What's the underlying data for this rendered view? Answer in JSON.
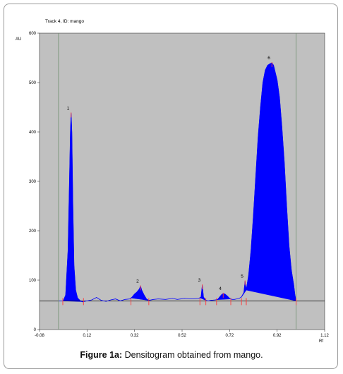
{
  "chart_data": {
    "type": "area",
    "title": "Track 4, ID: mango",
    "ylabel": "AU",
    "xlabel": "Rf",
    "xlim": [
      -0.08,
      1.12
    ],
    "ylim": [
      0,
      600
    ],
    "x_ticks": [
      -0.08,
      0.12,
      0.32,
      0.52,
      0.72,
      0.92,
      1.12
    ],
    "x_tick_labels": [
      "-0.08",
      "0.12",
      "0.32",
      "0.52",
      "0.72",
      "0.92",
      "1.12"
    ],
    "y_ticks": [
      0,
      100,
      200,
      300,
      400,
      500,
      600
    ],
    "y_tick_labels": [
      "0",
      "100",
      "200",
      "300",
      "400",
      "500",
      "600"
    ],
    "baseline_au": 58,
    "start_marker_rf": 0.0,
    "end_marker_rf": 1.0,
    "colors": {
      "plot_bg": "#c0c0c0",
      "fill": "#0000ff",
      "line": "#0000ff",
      "marker": "#ff3b3b",
      "baseline": "#000000",
      "guide": "#6f8f6f"
    },
    "peaks": [
      {
        "label": "1",
        "rf": 0.053,
        "height_au": 438
      },
      {
        "label": "2",
        "rf": 0.345,
        "height_au": 88
      },
      {
        "label": "3",
        "rf": 0.605,
        "height_au": 90
      },
      {
        "label": "4",
        "rf": 0.693,
        "height_au": 73
      },
      {
        "label": "5",
        "rf": 0.785,
        "height_au": 98
      },
      {
        "label": "6",
        "rf": 0.898,
        "height_au": 540
      }
    ],
    "curve": [
      [
        0.0,
        58
      ],
      [
        0.02,
        58
      ],
      [
        0.03,
        70
      ],
      [
        0.04,
        160
      ],
      [
        0.046,
        300
      ],
      [
        0.05,
        400
      ],
      [
        0.053,
        438
      ],
      [
        0.056,
        400
      ],
      [
        0.06,
        260
      ],
      [
        0.065,
        130
      ],
      [
        0.072,
        80
      ],
      [
        0.08,
        64
      ],
      [
        0.09,
        59
      ],
      [
        0.1,
        56
      ],
      [
        0.12,
        58
      ],
      [
        0.14,
        60
      ],
      [
        0.16,
        65
      ],
      [
        0.18,
        59
      ],
      [
        0.2,
        57
      ],
      [
        0.22,
        60
      ],
      [
        0.24,
        62
      ],
      [
        0.26,
        58
      ],
      [
        0.28,
        61
      ],
      [
        0.3,
        62
      ],
      [
        0.31,
        66
      ],
      [
        0.32,
        72
      ],
      [
        0.33,
        76
      ],
      [
        0.34,
        82
      ],
      [
        0.345,
        88
      ],
      [
        0.35,
        80
      ],
      [
        0.36,
        70
      ],
      [
        0.37,
        62
      ],
      [
        0.38,
        59
      ],
      [
        0.4,
        61
      ],
      [
        0.42,
        62
      ],
      [
        0.45,
        61
      ],
      [
        0.48,
        63
      ],
      [
        0.5,
        61
      ],
      [
        0.53,
        63
      ],
      [
        0.56,
        62
      ],
      [
        0.59,
        63
      ],
      [
        0.6,
        66
      ],
      [
        0.605,
        90
      ],
      [
        0.61,
        66
      ],
      [
        0.62,
        59
      ],
      [
        0.63,
        58
      ],
      [
        0.64,
        59
      ],
      [
        0.66,
        60
      ],
      [
        0.67,
        61
      ],
      [
        0.675,
        64
      ],
      [
        0.68,
        67
      ],
      [
        0.685,
        70
      ],
      [
        0.693,
        73
      ],
      [
        0.7,
        72
      ],
      [
        0.71,
        68
      ],
      [
        0.72,
        63
      ],
      [
        0.73,
        61
      ],
      [
        0.74,
        61
      ],
      [
        0.75,
        62
      ],
      [
        0.76,
        63
      ],
      [
        0.77,
        66
      ],
      [
        0.78,
        75
      ],
      [
        0.785,
        98
      ],
      [
        0.79,
        80
      ],
      [
        0.8,
        110
      ],
      [
        0.81,
        160
      ],
      [
        0.82,
        230
      ],
      [
        0.83,
        310
      ],
      [
        0.84,
        390
      ],
      [
        0.85,
        450
      ],
      [
        0.86,
        500
      ],
      [
        0.87,
        525
      ],
      [
        0.88,
        535
      ],
      [
        0.89,
        538
      ],
      [
        0.898,
        540
      ],
      [
        0.905,
        535
      ],
      [
        0.91,
        525
      ],
      [
        0.92,
        505
      ],
      [
        0.93,
        470
      ],
      [
        0.94,
        410
      ],
      [
        0.95,
        340
      ],
      [
        0.96,
        250
      ],
      [
        0.97,
        170
      ],
      [
        0.98,
        120
      ],
      [
        0.99,
        90
      ],
      [
        0.995,
        70
      ],
      [
        1.0,
        58
      ],
      [
        1.1,
        58
      ]
    ],
    "peak_regions": [
      [
        0.018,
        0.105
      ],
      [
        0.305,
        0.38
      ],
      [
        0.595,
        0.62
      ],
      [
        0.665,
        0.725
      ],
      [
        0.77,
        0.79
      ],
      [
        0.79,
        1.0
      ]
    ]
  },
  "caption": {
    "label": "Figure 1a:",
    "text": " Densitogram obtained from mango."
  }
}
